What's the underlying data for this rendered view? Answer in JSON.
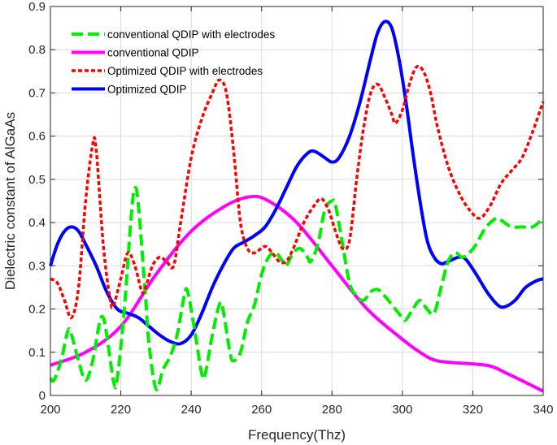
{
  "chart_data": {
    "type": "line",
    "title": "",
    "xlabel": "Frequency(Thz)",
    "ylabel": "Dielectric constant of AlGaAs",
    "xlim": [
      200,
      340
    ],
    "ylim": [
      0,
      0.9
    ],
    "xticks": [
      200,
      220,
      240,
      260,
      280,
      300,
      320,
      340
    ],
    "yticks": [
      0,
      0.1,
      0.2,
      0.3,
      0.4,
      0.5,
      0.6,
      0.7,
      0.8,
      0.9
    ],
    "grid": true,
    "legend_position": "top-left",
    "series": [
      {
        "name": "conventional QDIP with electrodes",
        "color": "#00ee00",
        "style": "dashed",
        "x": [
          200,
          201,
          203,
          205,
          206,
          208,
          210,
          212,
          214,
          215,
          216,
          218,
          219,
          221,
          223,
          224,
          225,
          227,
          228,
          230,
          232,
          234,
          236,
          238,
          239,
          241,
          243,
          244,
          246,
          248,
          249,
          251,
          252,
          254,
          256,
          258,
          260,
          262,
          264,
          266,
          267,
          269,
          271,
          273,
          274,
          276,
          278,
          280,
          281,
          283,
          285,
          287,
          289,
          291,
          293,
          295,
          297,
          300,
          301,
          303,
          305,
          307,
          309,
          311,
          313,
          315,
          317,
          319,
          321,
          323,
          325,
          327,
          329,
          331,
          334,
          337,
          340
        ],
        "y": [
          0.04,
          0.035,
          0.08,
          0.15,
          0.14,
          0.08,
          0.035,
          0.08,
          0.17,
          0.18,
          0.14,
          0.03,
          0.04,
          0.2,
          0.42,
          0.48,
          0.44,
          0.23,
          0.12,
          0.015,
          0.06,
          0.09,
          0.14,
          0.23,
          0.24,
          0.15,
          0.05,
          0.05,
          0.14,
          0.21,
          0.2,
          0.1,
          0.08,
          0.1,
          0.17,
          0.21,
          0.28,
          0.32,
          0.33,
          0.31,
          0.3,
          0.33,
          0.34,
          0.32,
          0.31,
          0.35,
          0.43,
          0.45,
          0.44,
          0.35,
          0.26,
          0.23,
          0.22,
          0.24,
          0.245,
          0.23,
          0.21,
          0.18,
          0.175,
          0.2,
          0.22,
          0.2,
          0.19,
          0.25,
          0.31,
          0.33,
          0.32,
          0.33,
          0.35,
          0.38,
          0.4,
          0.41,
          0.4,
          0.39,
          0.39,
          0.39,
          0.41
        ]
      },
      {
        "name": "conventional QDIP",
        "color": "#ff00ff",
        "style": "solid",
        "x": [
          200,
          210,
          220,
          230,
          240,
          250,
          257,
          262,
          270,
          280,
          290,
          300,
          305,
          310,
          320,
          325,
          330,
          340
        ],
        "y": [
          0.07,
          0.1,
          0.16,
          0.28,
          0.38,
          0.44,
          0.46,
          0.45,
          0.4,
          0.3,
          0.2,
          0.13,
          0.1,
          0.08,
          0.073,
          0.068,
          0.05,
          0.01
        ]
      },
      {
        "name": "Optimized QDIP with electrodes",
        "color": "#ff0000",
        "style": "dotted",
        "x": [
          200,
          202,
          204,
          206,
          208,
          210,
          212,
          213,
          215,
          217,
          218,
          220,
          222,
          224,
          226,
          227,
          229,
          231,
          233,
          235,
          237,
          240,
          243,
          246,
          248,
          250,
          252,
          254,
          256,
          258,
          261,
          263,
          265,
          267,
          269,
          272,
          275,
          277,
          279,
          281,
          283,
          285,
          287,
          289,
          291,
          293,
          295,
          297,
          298,
          300,
          302,
          304,
          306,
          308,
          310,
          313,
          316,
          319,
          322,
          325,
          328,
          331,
          334,
          337,
          340
        ],
        "y": [
          0.27,
          0.26,
          0.22,
          0.18,
          0.25,
          0.45,
          0.58,
          0.57,
          0.35,
          0.22,
          0.21,
          0.27,
          0.33,
          0.3,
          0.24,
          0.25,
          0.3,
          0.32,
          0.31,
          0.3,
          0.4,
          0.55,
          0.64,
          0.7,
          0.73,
          0.7,
          0.57,
          0.4,
          0.34,
          0.33,
          0.345,
          0.33,
          0.31,
          0.31,
          0.34,
          0.4,
          0.44,
          0.455,
          0.43,
          0.38,
          0.34,
          0.36,
          0.5,
          0.62,
          0.7,
          0.72,
          0.69,
          0.65,
          0.63,
          0.66,
          0.72,
          0.76,
          0.75,
          0.7,
          0.62,
          0.53,
          0.47,
          0.43,
          0.41,
          0.44,
          0.49,
          0.52,
          0.55,
          0.61,
          0.68
        ]
      },
      {
        "name": "Optimized QDIP",
        "color": "#0000ff",
        "style": "solid",
        "x": [
          200,
          202,
          204,
          206,
          208,
          210,
          213,
          216,
          219,
          222,
          225,
          228,
          231,
          234,
          237,
          240,
          243,
          246,
          249,
          252,
          255,
          258,
          261,
          264,
          267,
          270,
          273,
          275,
          278,
          280,
          282,
          285,
          288,
          291,
          293,
          295,
          297,
          299,
          301,
          303,
          305,
          307,
          309,
          311,
          313,
          316,
          318,
          321,
          324,
          327,
          329,
          332,
          335,
          338,
          340
        ],
        "y": [
          0.3,
          0.35,
          0.38,
          0.39,
          0.38,
          0.35,
          0.3,
          0.24,
          0.2,
          0.19,
          0.18,
          0.16,
          0.14,
          0.125,
          0.12,
          0.14,
          0.19,
          0.25,
          0.3,
          0.34,
          0.355,
          0.37,
          0.39,
          0.43,
          0.48,
          0.53,
          0.56,
          0.565,
          0.55,
          0.54,
          0.55,
          0.6,
          0.68,
          0.78,
          0.84,
          0.865,
          0.85,
          0.78,
          0.68,
          0.56,
          0.45,
          0.36,
          0.32,
          0.305,
          0.31,
          0.32,
          0.315,
          0.28,
          0.24,
          0.21,
          0.205,
          0.22,
          0.25,
          0.265,
          0.27
        ]
      }
    ]
  }
}
